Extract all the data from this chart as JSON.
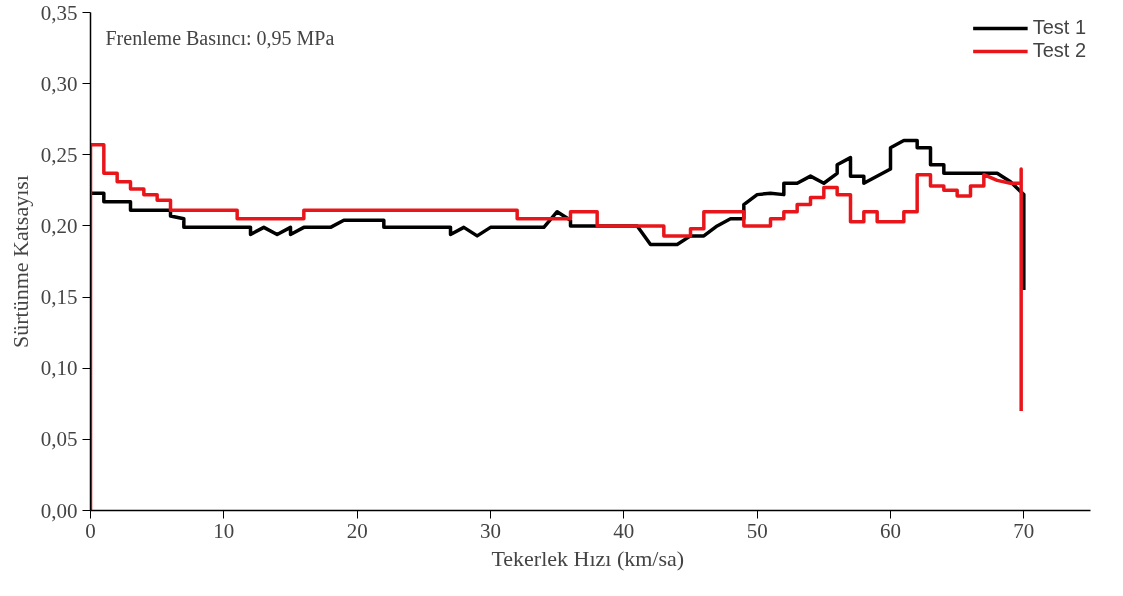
{
  "chart_data": {
    "type": "line",
    "xlabel": "Tekerlek Hızı  (km/sa)",
    "ylabel": "Sürtünme Katsayısı",
    "annotations": [
      "Frenleme Basıncı:  0,95 MPa"
    ],
    "xlim": [
      0,
      75
    ],
    "xticks": [
      0,
      10,
      20,
      30,
      40,
      50,
      60,
      70
    ],
    "ylim": [
      0,
      0.35
    ],
    "yticks": [
      {
        "value": 0,
        "label": "0,00"
      },
      {
        "value": 0.05,
        "label": "0,05"
      },
      {
        "value": 0.1,
        "label": "0,10"
      },
      {
        "value": 0.15,
        "label": "0,15"
      },
      {
        "value": 0.2,
        "label": "0,20"
      },
      {
        "value": 0.25,
        "label": "0,25"
      },
      {
        "value": 0.3,
        "label": "0,30"
      },
      {
        "value": 0.35,
        "label": "0,35"
      }
    ],
    "grid": false,
    "legend": "top right",
    "marker": "none",
    "line_style": "solid",
    "series": [
      {
        "name": "Test 1",
        "color": "#000000",
        "x": [
          0,
          1,
          1,
          3,
          3,
          6,
          6,
          7,
          7,
          12,
          12,
          13,
          14,
          15,
          15,
          16,
          18,
          19,
          22,
          22,
          27,
          27,
          28,
          29,
          30,
          34,
          35,
          36,
          36,
          41,
          42,
          44,
          45,
          46,
          47,
          48,
          49,
          49,
          50,
          51,
          52,
          52,
          53,
          54,
          55,
          56,
          56,
          57,
          57,
          58,
          58,
          60,
          60,
          61,
          62,
          62,
          63,
          63,
          64,
          64,
          68,
          69,
          70,
          70
        ],
        "values": [
          0.223,
          0.223,
          0.217,
          0.217,
          0.211,
          0.211,
          0.207,
          0.205,
          0.199,
          0.199,
          0.194,
          0.199,
          0.194,
          0.199,
          0.194,
          0.199,
          0.199,
          0.204,
          0.204,
          0.199,
          0.199,
          0.194,
          0.199,
          0.193,
          0.199,
          0.199,
          0.21,
          0.204,
          0.2,
          0.2,
          0.187,
          0.187,
          0.193,
          0.193,
          0.2,
          0.205,
          0.205,
          0.215,
          0.222,
          0.223,
          0.222,
          0.23,
          0.23,
          0.235,
          0.23,
          0.237,
          0.243,
          0.248,
          0.235,
          0.235,
          0.23,
          0.24,
          0.255,
          0.26,
          0.26,
          0.255,
          0.255,
          0.243,
          0.243,
          0.237,
          0.237,
          0.231,
          0.222,
          0.155
        ]
      },
      {
        "name": "Test 2",
        "color": "#e8161b",
        "x": [
          0,
          0,
          1,
          1,
          2,
          2,
          3,
          3,
          4,
          4,
          5,
          5,
          6,
          6,
          11,
          11,
          16,
          16,
          32,
          32,
          36,
          36,
          38,
          38,
          43,
          43,
          45,
          45,
          46,
          46,
          49,
          49,
          51,
          51,
          52,
          52,
          53,
          53,
          54,
          54,
          55,
          55,
          56,
          56,
          57,
          57,
          58,
          58,
          59,
          59,
          61,
          61,
          62,
          62,
          63,
          63,
          64,
          64,
          65,
          65,
          66,
          66,
          67,
          67,
          68,
          69,
          69.8,
          69.8,
          69.8
        ],
        "values": [
          0,
          0.257,
          0.257,
          0.237,
          0.237,
          0.231,
          0.231,
          0.226,
          0.226,
          0.222,
          0.222,
          0.218,
          0.218,
          0.211,
          0.211,
          0.205,
          0.205,
          0.211,
          0.211,
          0.205,
          0.205,
          0.21,
          0.21,
          0.2,
          0.2,
          0.193,
          0.193,
          0.198,
          0.198,
          0.21,
          0.21,
          0.2,
          0.2,
          0.205,
          0.205,
          0.21,
          0.21,
          0.215,
          0.215,
          0.22,
          0.22,
          0.227,
          0.227,
          0.222,
          0.222,
          0.203,
          0.203,
          0.21,
          0.21,
          0.203,
          0.203,
          0.21,
          0.21,
          0.236,
          0.236,
          0.228,
          0.228,
          0.225,
          0.225,
          0.221,
          0.221,
          0.228,
          0.228,
          0.236,
          0.232,
          0.23,
          0.23,
          0.24,
          0.07
        ]
      }
    ]
  }
}
